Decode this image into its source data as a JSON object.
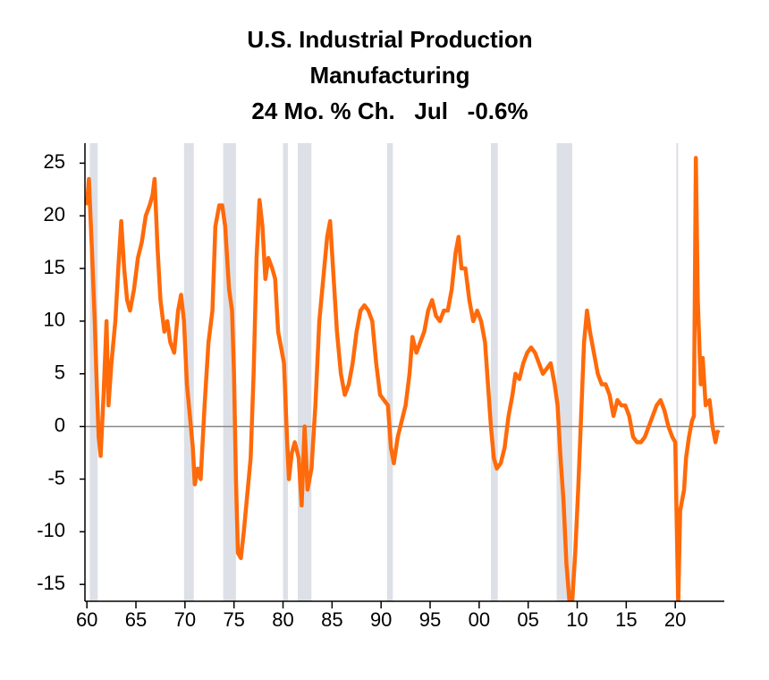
{
  "chart_data": {
    "type": "line",
    "title": [
      "U.S. Industrial Production",
      "Manufacturing",
      "24 Mo. % Ch.   Jul   -0.6%"
    ],
    "xlim": [
      1959.8,
      2025
    ],
    "ylim": [
      -16.6,
      26.9
    ],
    "yticks": [
      -15,
      -10,
      -5,
      0,
      5,
      10,
      15,
      20,
      25
    ],
    "xticks": [
      {
        "value": 1960,
        "label": "60"
      },
      {
        "value": 1965,
        "label": "65"
      },
      {
        "value": 1970,
        "label": "70"
      },
      {
        "value": 1975,
        "label": "75"
      },
      {
        "value": 1980,
        "label": "80"
      },
      {
        "value": 1985,
        "label": "85"
      },
      {
        "value": 1990,
        "label": "90"
      },
      {
        "value": 1995,
        "label": "95"
      },
      {
        "value": 2000,
        "label": "00"
      },
      {
        "value": 2005,
        "label": "05"
      },
      {
        "value": 2010,
        "label": "10"
      },
      {
        "value": 2015,
        "label": "15"
      },
      {
        "value": 2020,
        "label": "20"
      }
    ],
    "zero_line": 0,
    "zero_line_color": "#888888",
    "recession_color": "#dde0e6",
    "recessions": [
      [
        1960.3,
        1961.1
      ],
      [
        1969.9,
        1970.9
      ],
      [
        1973.9,
        1975.2
      ],
      [
        1980.0,
        1980.5
      ],
      [
        1981.5,
        1982.9
      ],
      [
        1990.6,
        1991.2
      ],
      [
        2001.2,
        2001.9
      ],
      [
        2007.9,
        2009.5
      ],
      [
        2020.1,
        2020.3
      ]
    ],
    "x": [
      1960.0,
      1960.2,
      1960.5,
      1960.8,
      1961.0,
      1961.2,
      1961.4,
      1961.7,
      1962.0,
      1962.2,
      1962.5,
      1962.9,
      1963.2,
      1963.5,
      1963.8,
      1964.1,
      1964.4,
      1964.8,
      1965.2,
      1965.6,
      1966.0,
      1966.4,
      1966.7,
      1966.9,
      1967.2,
      1967.5,
      1967.9,
      1968.2,
      1968.5,
      1968.9,
      1969.3,
      1969.6,
      1969.9,
      1970.2,
      1970.5,
      1970.8,
      1971.0,
      1971.3,
      1971.6,
      1972.0,
      1972.4,
      1972.8,
      1973.1,
      1973.5,
      1973.8,
      1974.1,
      1974.5,
      1974.8,
      1975.0,
      1975.2,
      1975.4,
      1975.7,
      1976.0,
      1976.4,
      1976.7,
      1977.0,
      1977.3,
      1977.6,
      1977.9,
      1978.2,
      1978.5,
      1978.9,
      1979.2,
      1979.5,
      1979.8,
      1980.1,
      1980.4,
      1980.6,
      1980.9,
      1981.2,
      1981.6,
      1981.9,
      1982.2,
      1982.5,
      1982.9,
      1983.3,
      1983.7,
      1984.1,
      1984.5,
      1984.8,
      1985.1,
      1985.5,
      1985.9,
      1986.3,
      1986.7,
      1987.1,
      1987.5,
      1987.9,
      1988.3,
      1988.7,
      1989.1,
      1989.5,
      1989.9,
      1990.3,
      1990.7,
      1991.0,
      1991.3,
      1991.7,
      1992.1,
      1992.5,
      1992.9,
      1993.2,
      1993.6,
      1994.0,
      1994.4,
      1994.8,
      1995.2,
      1995.6,
      1996.0,
      1996.4,
      1996.8,
      1997.2,
      1997.6,
      1997.9,
      1998.2,
      1998.6,
      1999.0,
      1999.4,
      1999.8,
      2000.2,
      2000.6,
      2000.9,
      2001.2,
      2001.5,
      2001.8,
      2002.2,
      2002.6,
      2003.0,
      2003.4,
      2003.7,
      2004.1,
      2004.5,
      2004.9,
      2005.3,
      2005.7,
      2006.1,
      2006.5,
      2006.9,
      2007.3,
      2007.7,
      2008.0,
      2008.3,
      2008.6,
      2008.9,
      2009.2,
      2009.5,
      2009.8,
      2010.1,
      2010.4,
      2010.7,
      2011.0,
      2011.3,
      2011.7,
      2012.1,
      2012.5,
      2012.9,
      2013.3,
      2013.7,
      2014.1,
      2014.5,
      2014.9,
      2015.3,
      2015.7,
      2016.1,
      2016.5,
      2016.9,
      2017.3,
      2017.7,
      2018.1,
      2018.5,
      2018.9,
      2019.3,
      2019.7,
      2020.0,
      2020.3,
      2020.5,
      2020.9,
      2021.1,
      2021.4,
      2021.7,
      2021.9,
      2022.1,
      2022.3,
      2022.6,
      2022.8,
      2023.1,
      2023.5,
      2023.8,
      2024.1,
      2024.3,
      2024.5
    ],
    "series": [
      {
        "color": "#ff6a0a",
        "values": [
          21,
          23.5,
          17,
          10,
          4,
          -1,
          -2.8,
          3,
          10,
          2,
          6,
          10,
          15,
          19.5,
          15,
          12,
          11,
          13,
          16,
          17.5,
          20,
          21,
          22,
          23.5,
          17,
          12,
          9,
          10,
          8,
          7,
          11,
          12.5,
          10,
          4,
          1,
          -2,
          -5.5,
          -4,
          -5,
          2,
          8,
          11,
          19,
          21,
          21,
          19,
          13,
          11,
          5,
          -5,
          -12,
          -12.5,
          -10,
          -6,
          -3,
          5,
          16,
          21.5,
          19,
          14,
          16,
          15,
          14,
          9,
          7.5,
          6,
          -1,
          -5,
          -2.5,
          -1.5,
          -3,
          -7.5,
          0,
          -6,
          -4,
          2,
          10,
          14,
          18,
          19.5,
          15,
          9,
          5,
          3,
          4,
          6,
          9,
          11,
          11.5,
          11,
          10,
          6,
          3,
          2.5,
          2,
          -2,
          -3.5,
          -1,
          0.5,
          2,
          5,
          8.5,
          7,
          8,
          9,
          11,
          12,
          10.5,
          10,
          11,
          11,
          13,
          16.5,
          18,
          15,
          15,
          12,
          10,
          11,
          10,
          8,
          4,
          0,
          -3,
          -4,
          -3.5,
          -2,
          1,
          3,
          5,
          4.5,
          6,
          7,
          7.5,
          7,
          6,
          5,
          5.5,
          6,
          4,
          2,
          -3,
          -7,
          -13,
          -16.5,
          -16.5,
          -12,
          -6,
          1,
          8,
          11,
          9,
          7,
          5,
          4,
          4,
          3,
          1,
          2.5,
          2,
          2,
          1,
          -1,
          -1.5,
          -1.5,
          -1,
          0,
          1,
          2,
          2.5,
          1.5,
          0,
          -1,
          -1.5,
          -17,
          -8,
          -6,
          -3,
          -1,
          0.5,
          1,
          25.5,
          12,
          4,
          6.5,
          2,
          2.5,
          0,
          -1.5,
          -0.5,
          -0.6
        ]
      }
    ]
  }
}
